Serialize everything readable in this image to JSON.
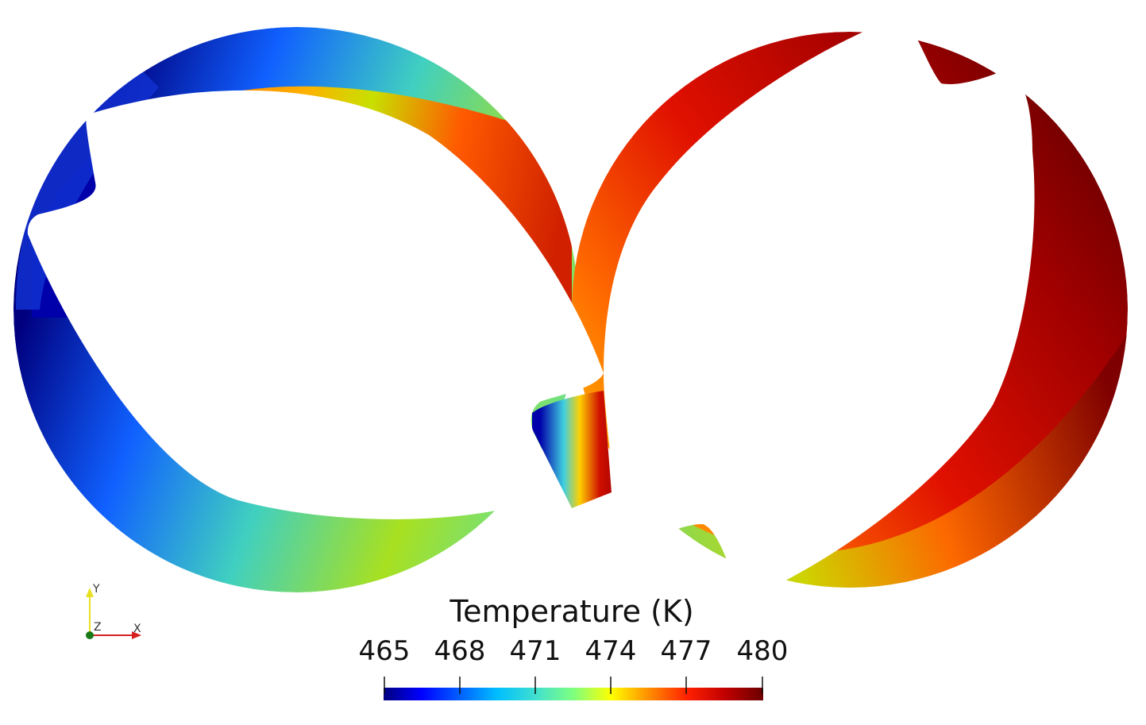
{
  "legend": {
    "title": "Temperature (K)",
    "ticks": [
      "465",
      "468",
      "471",
      "474",
      "477",
      "480"
    ],
    "range": [
      465,
      480
    ],
    "colormap": [
      "#00007f",
      "#0000ff",
      "#00bfff",
      "#40e0d0",
      "#7fff7f",
      "#c8e000",
      "#ffd700",
      "#ff8c00",
      "#ff2000",
      "#b00000",
      "#6b0000"
    ]
  },
  "orientation_axes": {
    "y_label": "Y",
    "z_label": "Z",
    "x_label": "X",
    "colors": {
      "x": "#d62020",
      "y": "#e8e020",
      "z": "#1a7a1a"
    }
  }
}
